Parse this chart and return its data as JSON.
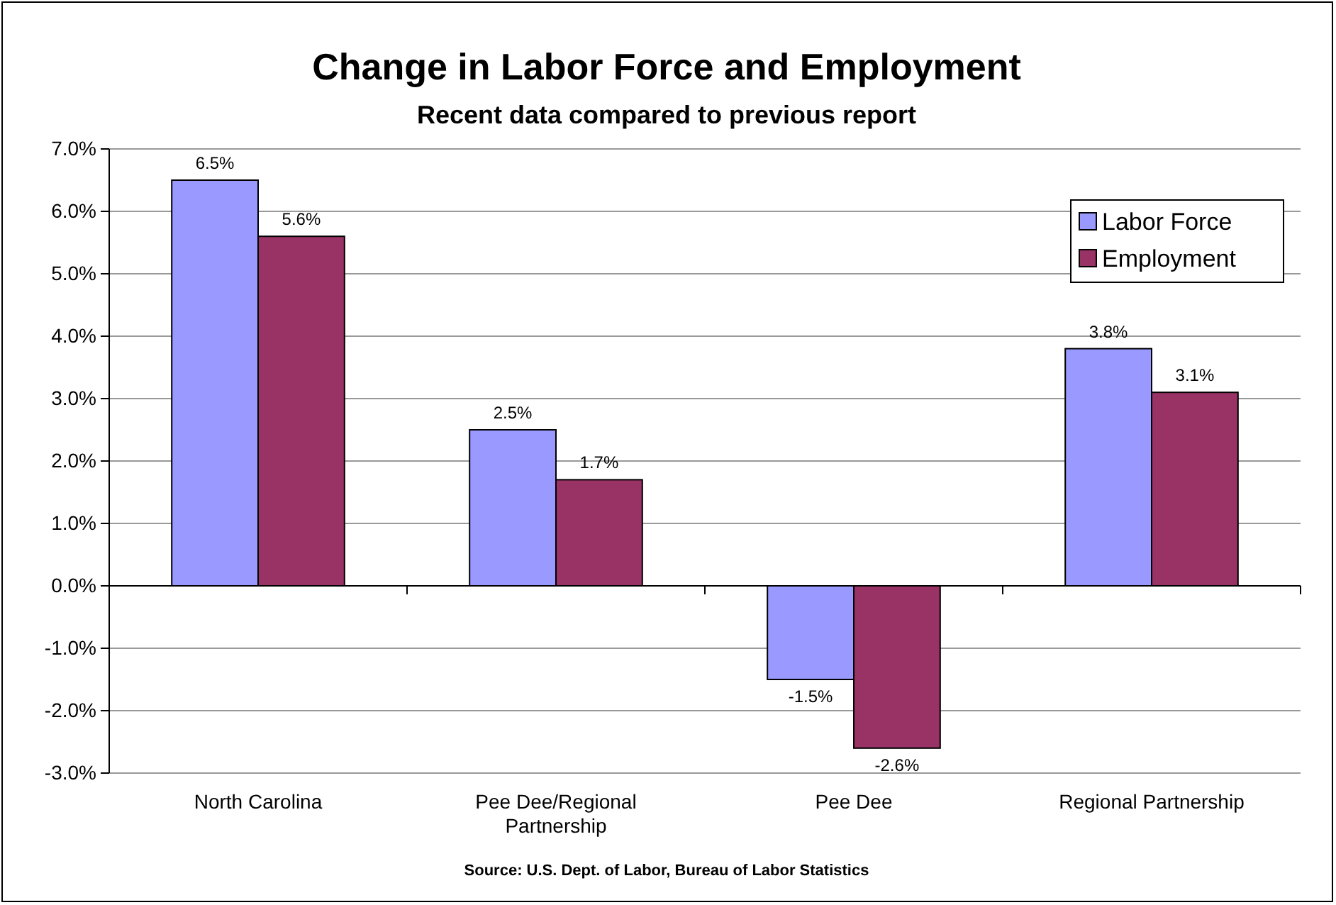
{
  "chart_data": {
    "type": "bar",
    "title": "Change in Labor Force and Employment",
    "subtitle": "Recent data compared to previous report",
    "categories": [
      "North Carolina",
      "Pee Dee/Regional Partnership",
      "Pee Dee",
      "Regional Partnership"
    ],
    "series": [
      {
        "name": "Labor Force",
        "color": "#9999ff",
        "values": [
          6.5,
          2.5,
          -1.5,
          3.8
        ],
        "value_labels": [
          "6.5%",
          "2.5%",
          "-1.5%",
          "3.8%"
        ]
      },
      {
        "name": "Employment",
        "color": "#993366",
        "values": [
          5.6,
          1.7,
          -2.6,
          3.1
        ],
        "value_labels": [
          "5.6%",
          "1.7%",
          "-2.6%",
          "3.1%"
        ]
      }
    ],
    "ylim": [
      -3,
      7
    ],
    "yticks": [
      {
        "value": -3,
        "label": "-3.0%"
      },
      {
        "value": -2,
        "label": "-2.0%"
      },
      {
        "value": -1,
        "label": "-1.0%"
      },
      {
        "value": 0,
        "label": "0.0%"
      },
      {
        "value": 1,
        "label": "1.0%"
      },
      {
        "value": 2,
        "label": "2.0%"
      },
      {
        "value": 3,
        "label": "3.0%"
      },
      {
        "value": 4,
        "label": "4.0%"
      },
      {
        "value": 5,
        "label": "5.0%"
      },
      {
        "value": 6,
        "label": "6.0%"
      },
      {
        "value": 7,
        "label": "7.0%"
      }
    ],
    "grid": "y",
    "legend": "top right",
    "annotations": [
      "Source: U.S. Dept. of Labor, Bureau of Labor Statistics"
    ]
  }
}
